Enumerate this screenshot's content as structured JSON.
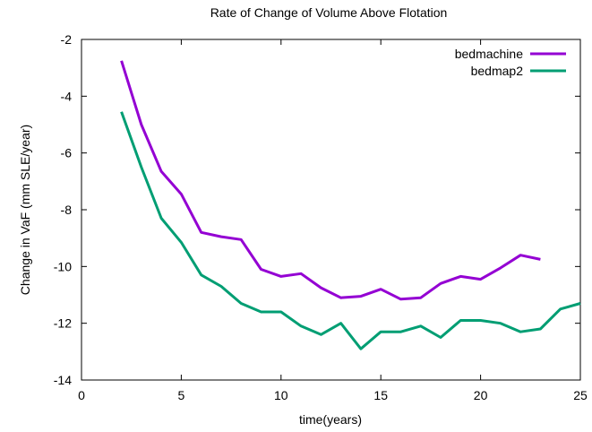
{
  "chart_data": {
    "type": "line",
    "title": "Rate of Change of Volume Above Flotation",
    "xlabel": "time(years)",
    "ylabel": "Change in VaF (mm SLE/year)",
    "xlim": [
      0,
      25
    ],
    "ylim": [
      -14,
      -2
    ],
    "xticks": [
      0,
      5,
      10,
      15,
      20,
      25
    ],
    "yticks": [
      -14,
      -12,
      -10,
      -8,
      -6,
      -4,
      -2
    ],
    "grid": false,
    "legend_position": "top-right",
    "series": [
      {
        "name": "bedmachine",
        "color": "#9400d3",
        "x": [
          2,
          3,
          4,
          5,
          6,
          7,
          8,
          9,
          10,
          11,
          12,
          13,
          14,
          15,
          16,
          17,
          18,
          19,
          20,
          21,
          22,
          23
        ],
        "values": [
          -2.75,
          -5.0,
          -6.65,
          -7.45,
          -8.8,
          -8.95,
          -9.05,
          -10.1,
          -10.35,
          -10.25,
          -10.75,
          -11.1,
          -11.05,
          -10.8,
          -11.15,
          -11.1,
          -10.6,
          -10.35,
          -10.45,
          -10.05,
          -9.6,
          -9.75
        ]
      },
      {
        "name": "bedmap2",
        "color": "#009e73",
        "x": [
          2,
          3,
          4,
          5,
          6,
          7,
          8,
          9,
          10,
          11,
          12,
          13,
          14,
          15,
          16,
          17,
          18,
          19,
          20,
          21,
          22,
          23,
          24,
          25
        ],
        "values": [
          -4.55,
          -6.5,
          -8.3,
          -9.15,
          -10.3,
          -10.7,
          -11.3,
          -11.6,
          -11.6,
          -12.1,
          -12.4,
          -12.0,
          -12.9,
          -12.3,
          -12.3,
          -12.1,
          -12.5,
          -11.9,
          -11.9,
          -12.0,
          -12.3,
          -12.2,
          -11.5,
          -11.3
        ]
      }
    ]
  }
}
